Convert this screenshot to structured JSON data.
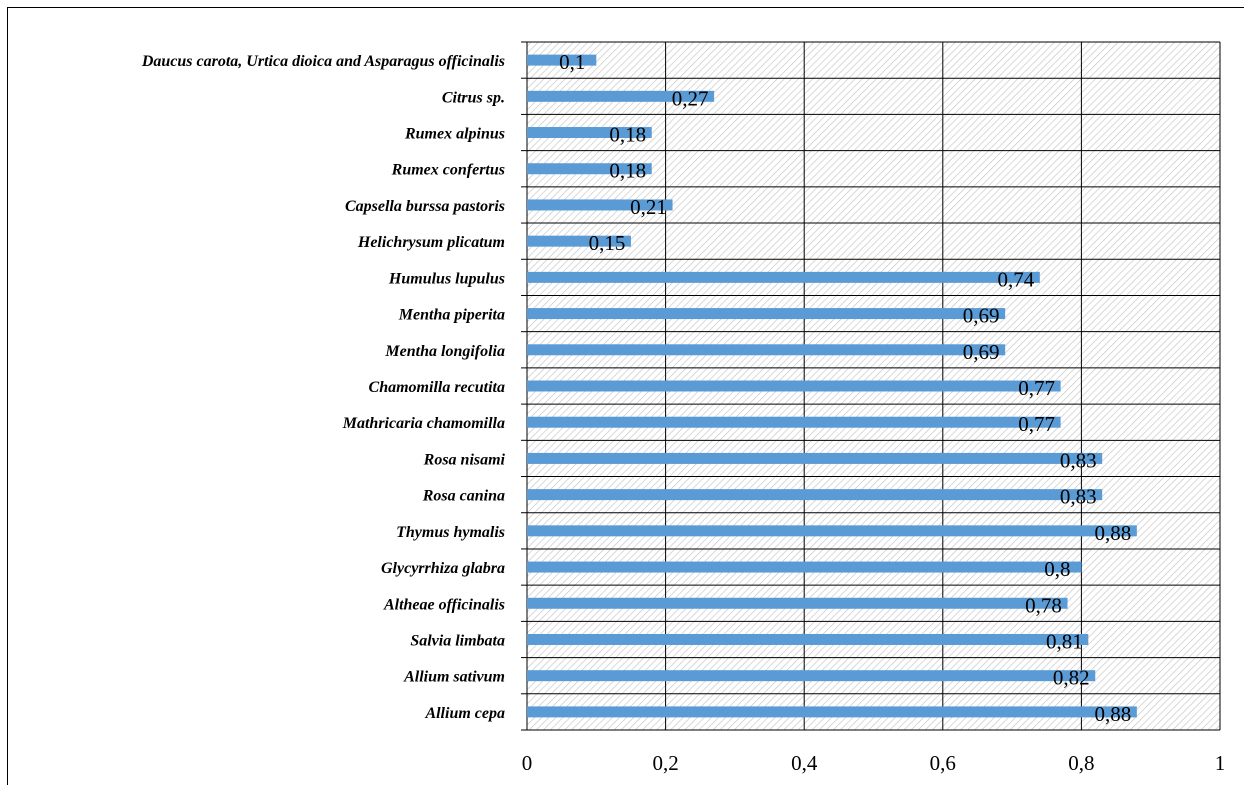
{
  "chart_data": {
    "type": "bar",
    "orientation": "horizontal",
    "title": "",
    "xlabel": "",
    "ylabel": "",
    "xlim": [
      0,
      1
    ],
    "x_ticks": [
      0,
      0.2,
      0.4,
      0.6,
      0.8,
      1
    ],
    "x_tick_labels": [
      "0",
      "0,2",
      "0,4",
      "0,6",
      "0,8",
      "1"
    ],
    "grid": true,
    "legend": "none",
    "plot_background": "hatched",
    "bar_color": "#5b9bd5",
    "categories": [
      "Daucus carota, Urtica dioica and Asparagus officinalis",
      "Citrus sp.",
      "Rumex alpinus",
      "Rumex confertus",
      "Capsella burssa pastoris",
      "Helichrysum plicatum",
      "Humulus lupulus",
      "Mentha piperita",
      "Mentha longifolia",
      "Chamomilla recutita",
      "Mathricaria chamomilla",
      "Rosa nisami",
      "Rosa canina",
      "Thymus hymalis",
      "Glycyrrhiza glabra",
      "Altheae officinalis",
      "Salvia limbata",
      "Allium sativum",
      "Allium cepa"
    ],
    "values": [
      0.1,
      0.27,
      0.18,
      0.18,
      0.21,
      0.15,
      0.74,
      0.69,
      0.69,
      0.77,
      0.77,
      0.83,
      0.83,
      0.88,
      0.8,
      0.78,
      0.81,
      0.82,
      0.88
    ],
    "data_labels": [
      "0,1",
      "0,27",
      "0,18",
      "0,18",
      "0,21",
      "0,15",
      "0,74",
      "0,69",
      "0,69",
      "0,77",
      "0,77",
      "0,83",
      "0,83",
      "0,88",
      "0,8",
      "0,78",
      "0,81",
      "0,82",
      "0,88"
    ]
  }
}
